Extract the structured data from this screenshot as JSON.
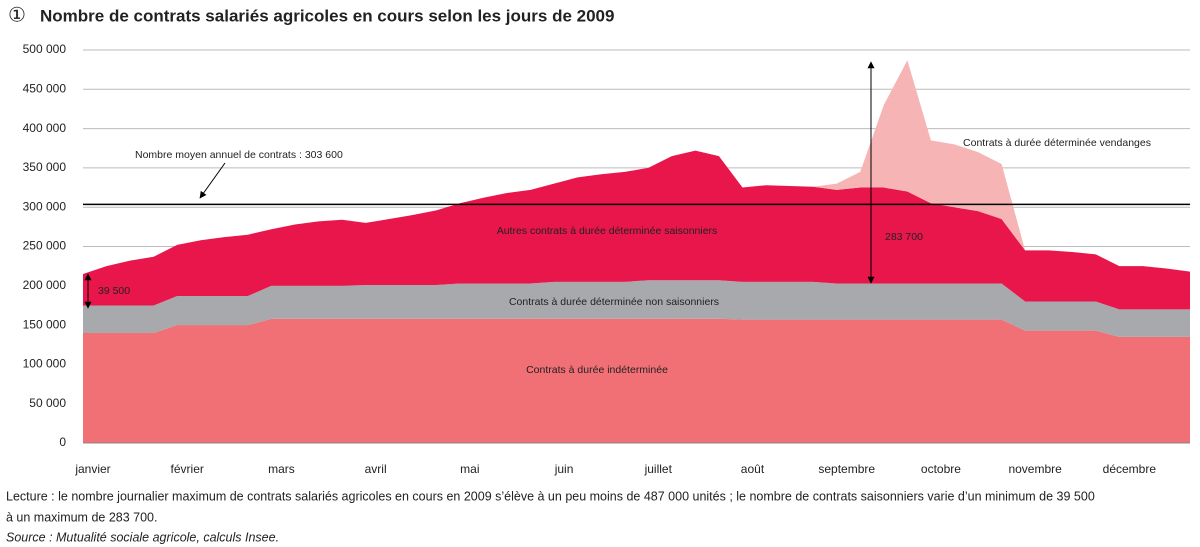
{
  "chart_data": {
    "type": "stacked_area",
    "number": "①",
    "title": "Nombre de contrats salariés agricoles en cours selon les jours de 2009",
    "categories": [
      "janvier",
      null,
      null,
      null,
      "février",
      null,
      null,
      null,
      "mars",
      null,
      null,
      null,
      "avril",
      null,
      null,
      null,
      "mai",
      null,
      null,
      null,
      "juin",
      null,
      null,
      null,
      "juillet",
      null,
      null,
      null,
      "août",
      null,
      null,
      null,
      "septembre",
      null,
      null,
      null,
      "octobre",
      null,
      null,
      null,
      "novembre",
      null,
      null,
      null,
      "décembre",
      null,
      null,
      null
    ],
    "series": [
      {
        "name": "Contrats à durée indéterminée",
        "color": "#f07075",
        "values": [
          140000,
          140000,
          140000,
          140000,
          150000,
          150000,
          150000,
          150000,
          158000,
          158000,
          158000,
          158000,
          158000,
          158000,
          158000,
          158000,
          158000,
          158000,
          158000,
          158000,
          158000,
          158000,
          158000,
          158000,
          158000,
          158000,
          158000,
          158000,
          157000,
          157000,
          157000,
          157000,
          157000,
          157000,
          157000,
          157000,
          157000,
          157000,
          157000,
          157000,
          143000,
          143000,
          143000,
          143000,
          135000,
          135000,
          135000,
          135000
        ]
      },
      {
        "name": "Contrats à durée déterminée non saisonniers",
        "color": "#a7a9ac",
        "values": [
          35000,
          35000,
          35000,
          35000,
          37000,
          37000,
          37000,
          37000,
          42000,
          42000,
          42000,
          42000,
          43000,
          43000,
          43000,
          43000,
          45000,
          45000,
          45000,
          45000,
          47000,
          47000,
          47000,
          47000,
          49000,
          49000,
          49000,
          49000,
          48000,
          48000,
          48000,
          48000,
          46000,
          46000,
          46000,
          46000,
          46000,
          46000,
          46000,
          46000,
          37000,
          37000,
          37000,
          37000,
          35000,
          35000,
          35000,
          35000
        ]
      },
      {
        "name": "Autres contrats à durée déterminée saisonniers",
        "color": "#e8164a",
        "values": [
          40000,
          50000,
          57000,
          62000,
          65000,
          71000,
          75000,
          78000,
          72000,
          78000,
          82000,
          84000,
          79000,
          84000,
          89000,
          95000,
          102000,
          109000,
          115000,
          119000,
          125000,
          133000,
          137000,
          140000,
          143000,
          158000,
          165000,
          158000,
          120000,
          123000,
          122000,
          121000,
          119000,
          122000,
          122000,
          117000,
          102000,
          97000,
          92000,
          82000,
          65000,
          65000,
          63000,
          60000,
          55000,
          55000,
          52000,
          48000
        ]
      },
      {
        "name": "Contrats à durée déterminée vendanges",
        "color": "#f7b4b5",
        "values": [
          0,
          0,
          0,
          0,
          0,
          0,
          0,
          0,
          0,
          0,
          0,
          0,
          0,
          0,
          0,
          0,
          0,
          0,
          0,
          0,
          0,
          0,
          0,
          0,
          0,
          0,
          0,
          0,
          0,
          0,
          0,
          0,
          8000,
          20000,
          105000,
          167000,
          80000,
          80000,
          75000,
          70000,
          0,
          0,
          0,
          0,
          0,
          0,
          0,
          0
        ]
      }
    ],
    "ylim": [
      0,
      500000
    ],
    "yticks": [
      0,
      {
        "value": 50000,
        "label": "50 000"
      },
      {
        "value": 100000,
        "label": "100 000"
      },
      {
        "value": 150000,
        "label": "150 000"
      },
      {
        "value": 200000,
        "label": "200 000"
      },
      {
        "value": 250000,
        "label": "250 000"
      },
      {
        "value": 300000,
        "label": "300 000"
      },
      {
        "value": 350000,
        "label": "350 000"
      },
      {
        "value": 400000,
        "label": "400 000"
      },
      {
        "value": 450000,
        "label": "450 000"
      },
      {
        "value": 500000,
        "label": "500 000"
      }
    ],
    "grid": true,
    "mean_line": {
      "label": "Nombre moyen annuel de contrats : 303 600",
      "value": 303600
    },
    "annotations": [
      "39 500",
      "283 700"
    ],
    "notes": [
      "Lecture : le nombre journalier maximum de contrats salariés agricoles en cours en 2009 s’élève à un peu moins de 487 000 unités ; le nombre de contrats saisonniers varie d’un minimum de 39 500",
      "à un maximum de 283 700."
    ],
    "source": "Source : Mutualité sociale agricole, calculs Insee."
  }
}
